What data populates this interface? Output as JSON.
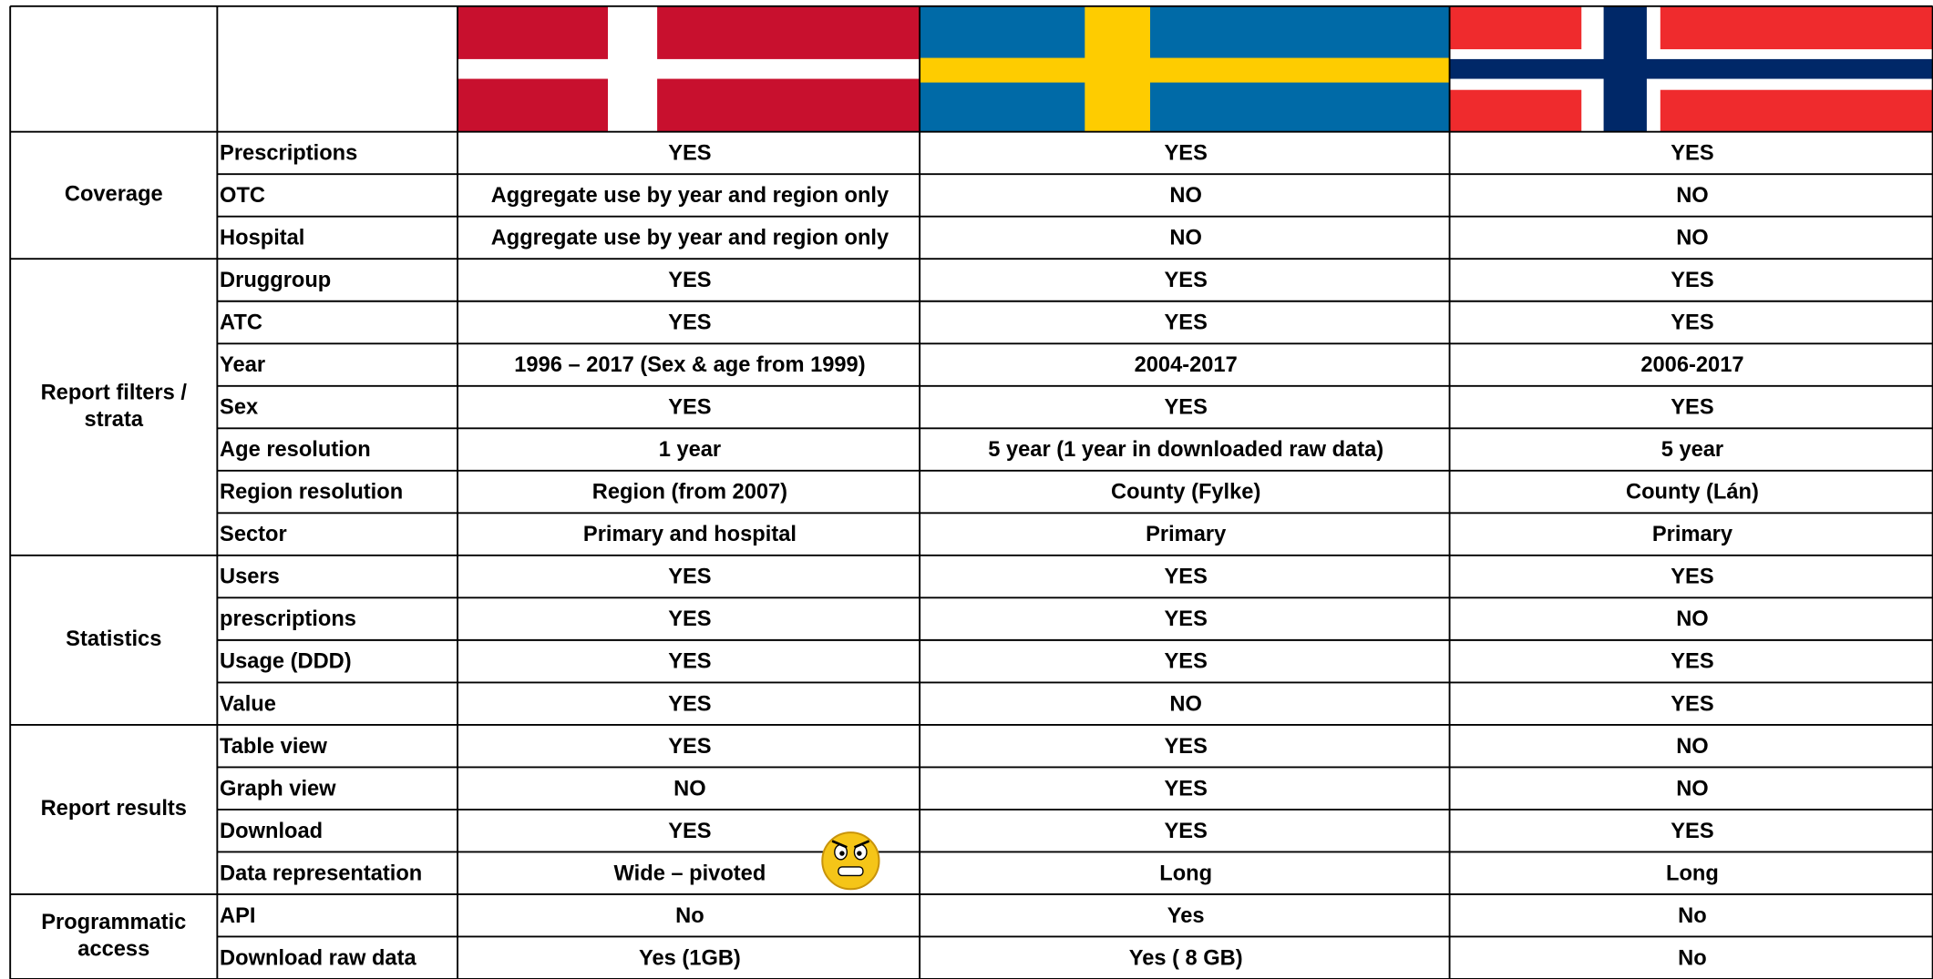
{
  "table": {
    "groups": [
      {
        "label": [
          "Coverage"
        ],
        "rows": [
          {
            "label": "Prescriptions",
            "cells": [
              "YES",
              "YES",
              "YES"
            ]
          },
          {
            "label": "OTC",
            "cells": [
              "Aggregate use by year and region only",
              "NO",
              "NO"
            ]
          },
          {
            "label": "Hospital",
            "cells": [
              "Aggregate use by year and region only",
              "NO",
              "NO"
            ]
          }
        ]
      },
      {
        "label": [
          "Report filters /",
          "strata"
        ],
        "rows": [
          {
            "label": "Druggroup",
            "cells": [
              "YES",
              "YES",
              "YES"
            ]
          },
          {
            "label": "ATC",
            "cells": [
              "YES",
              "YES",
              "YES"
            ]
          },
          {
            "label": "Year",
            "cells": [
              "1996 – 2017 (Sex & age from 1999)",
              "2004-2017",
              "2006-2017"
            ]
          },
          {
            "label": "Sex",
            "cells": [
              "YES",
              "YES",
              "YES"
            ]
          },
          {
            "label": "Age resolution",
            "cells": [
              "1 year",
              "5 year (1 year in downloaded raw data)",
              "5 year"
            ]
          },
          {
            "label": "Region resolution",
            "cells": [
              "Region (from 2007)",
              "County (Fylke)",
              "County (Lán)"
            ]
          },
          {
            "label": "Sector",
            "cells": [
              "Primary and hospital",
              "Primary",
              "Primary"
            ]
          }
        ]
      },
      {
        "label": [
          "Statistics"
        ],
        "rows": [
          {
            "label": "Users",
            "cells": [
              "YES",
              "YES",
              "YES"
            ]
          },
          {
            "label": "prescriptions",
            "cells": [
              "YES",
              "YES",
              "NO"
            ]
          },
          {
            "label": "Usage (DDD)",
            "cells": [
              "YES",
              "YES",
              "YES"
            ]
          },
          {
            "label": "Value",
            "cells": [
              "YES",
              "NO",
              "YES"
            ]
          }
        ]
      },
      {
        "label": [
          "Report results"
        ],
        "rows": [
          {
            "label": "Table view",
            "cells": [
              "YES",
              "YES",
              "NO"
            ]
          },
          {
            "label": "Graph view",
            "cells": [
              "NO",
              "YES",
              "NO"
            ]
          },
          {
            "label": "Download",
            "cells": [
              "YES",
              "YES",
              "YES"
            ]
          },
          {
            "label": "Data representation",
            "cells": [
              "Wide – pivoted",
              "Long",
              "Long"
            ]
          }
        ]
      },
      {
        "label": [
          "Programmatic",
          "access"
        ],
        "rows": [
          {
            "label": "API",
            "cells": [
              "No",
              "Yes",
              "No"
            ]
          },
          {
            "label": "Download raw data",
            "cells": [
              "Yes (1GB)",
              "Yes ( 8 GB)",
              "No"
            ]
          }
        ]
      }
    ]
  }
}
